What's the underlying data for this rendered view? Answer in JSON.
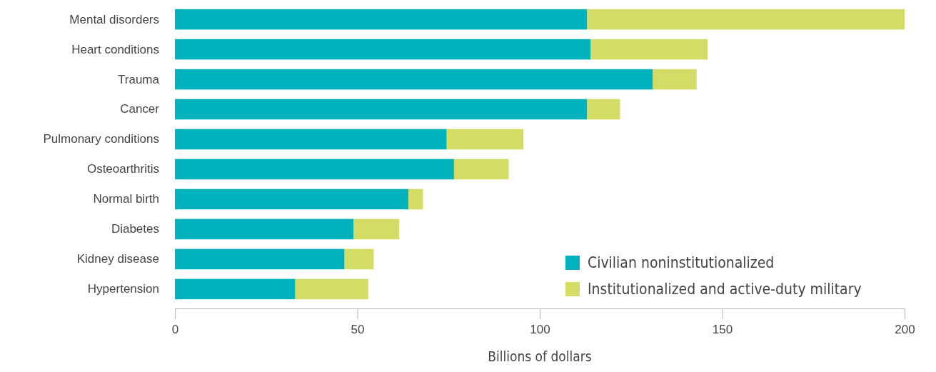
{
  "chart_data": {
    "type": "bar",
    "orientation": "horizontal",
    "stacked": true,
    "xlabel": "Billions of dollars",
    "categories": [
      "Mental disorders",
      "Heart conditions",
      "Trauma",
      "Cancer",
      "Pulmonary conditions",
      "Osteoarthritis",
      "Normal birth",
      "Diabetes",
      "Kidney disease",
      "Hypertension"
    ],
    "series": [
      {
        "name": "Civilian noninstitutionalized",
        "color": "#00b2bb",
        "values": [
          113,
          114,
          131,
          113,
          74.5,
          76.5,
          64,
          49,
          46.5,
          33
        ]
      },
      {
        "name": "Institutionalized and active-duty military",
        "color": "#d3dd65",
        "values": [
          87,
          32,
          12,
          9,
          21,
          15,
          4,
          12.5,
          8,
          20
        ]
      }
    ],
    "xlim": [
      0,
      200
    ],
    "xticks": [
      0,
      50,
      100,
      150,
      200
    ],
    "legend": "bottom right"
  }
}
